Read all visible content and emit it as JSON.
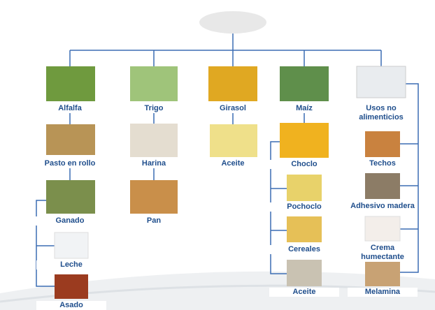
{
  "nodes": [
    {
      "label": "Alfalfa"
    },
    {
      "label": "Pasto en rollo"
    },
    {
      "label": "Ganado"
    },
    {
      "label": "Leche"
    },
    {
      "label": "Asado"
    },
    {
      "label": "Trigo"
    },
    {
      "label": "Harina"
    },
    {
      "label": "Pan"
    },
    {
      "label": "Girasol"
    },
    {
      "label": "Aceite"
    },
    {
      "label": "Maíz"
    },
    {
      "label": "Choclo"
    },
    {
      "label": "Pochoclo"
    },
    {
      "label": "Cereales"
    },
    {
      "label": "Aceite"
    },
    {
      "label": "Usos no alimenticios"
    },
    {
      "label": "Techos"
    },
    {
      "label": "Adhesivo madera"
    },
    {
      "label": "Crema humectante"
    },
    {
      "label": "Melamina"
    }
  ]
}
